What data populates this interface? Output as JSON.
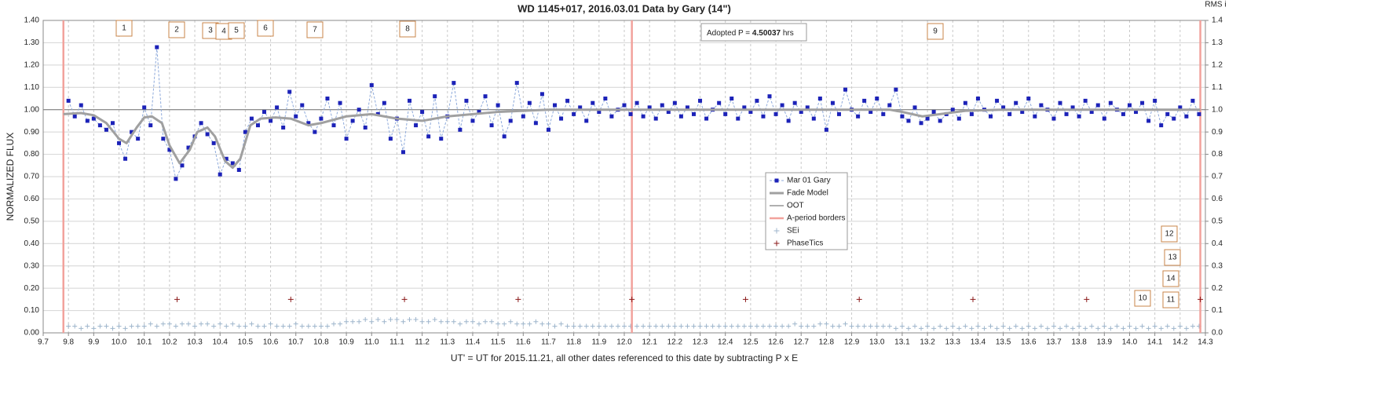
{
  "chart_data": {
    "type": "scatter",
    "title": "WD 1145+017, 2016.03.01 Data by Gary (14\")",
    "x_label": "UT' = UT for 2015.11.21, all other dates referenced to this date by subtracting P x E",
    "y_label": "NORMALIZED FLUX",
    "y2_label": "RMS i",
    "xlim": [
      9.7,
      14.3
    ],
    "xticks": [
      9.7,
      9.8,
      9.9,
      {
        "value": 10.0,
        "label": "10.0"
      },
      10.1,
      10.2,
      10.3,
      10.4,
      10.5,
      10.6,
      10.7,
      10.8,
      10.9,
      {
        "value": 11.0,
        "label": "11.0"
      },
      11.1,
      11.2,
      11.3,
      11.4,
      11.5,
      11.6,
      11.7,
      11.8,
      11.9,
      {
        "value": 12.0,
        "label": "12.0"
      },
      12.1,
      12.2,
      12.3,
      12.4,
      12.5,
      12.6,
      12.7,
      12.8,
      12.9,
      {
        "value": 13.0,
        "label": "13.0"
      },
      13.1,
      13.2,
      13.3,
      13.4,
      13.5,
      13.6,
      13.7,
      13.8,
      13.9,
      {
        "value": 14.0,
        "label": "14.0"
      },
      14.1,
      14.2,
      14.3
    ],
    "ylim": [
      0,
      1.4
    ],
    "yticks": [
      {
        "value": 0,
        "label": "0.00"
      },
      {
        "value": 0.1,
        "label": "0.10"
      },
      {
        "value": 0.2,
        "label": "0.20"
      },
      {
        "value": 0.3,
        "label": "0.30"
      },
      {
        "value": 0.4,
        "label": "0.40"
      },
      {
        "value": 0.5,
        "label": "0.50"
      },
      {
        "value": 0.6,
        "label": "0.60"
      },
      {
        "value": 0.7,
        "label": "0.70"
      },
      {
        "value": 0.8,
        "label": "0.80"
      },
      {
        "value": 0.9,
        "label": "0.90"
      },
      {
        "value": 1.0,
        "label": "1.00"
      },
      {
        "value": 1.1,
        "label": "1.10"
      },
      {
        "value": 1.2,
        "label": "1.20"
      },
      {
        "value": 1.3,
        "label": "1.30"
      },
      {
        "value": 1.4,
        "label": "1.40"
      }
    ],
    "y2lim": [
      0,
      1.4
    ],
    "y2ticks": [
      {
        "value": 0,
        "label": "0.0"
      },
      0.1,
      0.2,
      0.3,
      0.4,
      0.5,
      0.6,
      0.7,
      0.8,
      0.9,
      {
        "value": 1.0,
        "label": "1.0"
      },
      1.1,
      1.2,
      1.3,
      1.4
    ],
    "grid": true,
    "annotations": [
      "1",
      "2",
      "3",
      "4",
      "5",
      "6",
      "7",
      "8",
      "9",
      "10",
      "11",
      "12",
      "13",
      "14"
    ],
    "period_note": {
      "prefix": "Adopted P = ",
      "value": 4.50037,
      "suffix": " hrs"
    },
    "x": [
      9.8,
      9.825,
      9.85,
      9.875,
      9.9,
      9.925,
      9.95,
      9.975,
      10.0,
      10.025,
      10.05,
      10.075,
      10.1,
      10.125,
      10.15,
      10.175,
      10.2,
      10.225,
      10.25,
      10.275,
      10.3,
      10.325,
      10.35,
      10.375,
      10.4,
      10.425,
      10.45,
      10.475,
      10.5,
      10.525,
      10.55,
      10.575,
      10.6,
      10.625,
      10.65,
      10.675,
      10.7,
      10.725,
      10.75,
      10.775,
      10.8,
      10.825,
      10.85,
      10.875,
      10.9,
      10.925,
      10.95,
      10.975,
      11.0,
      11.025,
      11.05,
      11.075,
      11.1,
      11.125,
      11.15,
      11.175,
      11.2,
      11.225,
      11.25,
      11.275,
      11.3,
      11.325,
      11.35,
      11.375,
      11.4,
      11.425,
      11.45,
      11.475,
      11.5,
      11.525,
      11.55,
      11.575,
      11.6,
      11.625,
      11.65,
      11.675,
      11.7,
      11.725,
      11.75,
      11.775,
      11.8,
      11.825,
      11.85,
      11.875,
      11.9,
      11.925,
      11.95,
      11.975,
      12.0,
      12.025,
      12.05,
      12.075,
      12.1,
      12.125,
      12.15,
      12.175,
      12.2,
      12.225,
      12.25,
      12.275,
      12.3,
      12.325,
      12.35,
      12.375,
      12.4,
      12.425,
      12.45,
      12.475,
      12.5,
      12.525,
      12.55,
      12.575,
      12.6,
      12.625,
      12.65,
      12.675,
      12.7,
      12.725,
      12.75,
      12.775,
      12.8,
      12.825,
      12.85,
      12.875,
      12.9,
      12.925,
      12.95,
      12.975,
      13.0,
      13.025,
      13.05,
      13.075,
      13.1,
      13.125,
      13.15,
      13.175,
      13.2,
      13.225,
      13.25,
      13.275,
      13.3,
      13.325,
      13.35,
      13.375,
      13.4,
      13.425,
      13.45,
      13.475,
      13.5,
      13.525,
      13.55,
      13.575,
      13.6,
      13.625,
      13.65,
      13.675,
      13.7,
      13.725,
      13.75,
      13.775,
      13.8,
      13.825,
      13.85,
      13.875,
      13.9,
      13.925,
      13.95,
      13.975,
      14.0,
      14.025,
      14.05,
      14.075,
      14.1,
      14.125,
      14.15,
      14.175,
      14.2,
      14.225,
      14.25,
      14.275
    ],
    "series": [
      {
        "name": "Mar 01 Gary",
        "color": "#1c22b8",
        "line_color": "#8eaadb",
        "values": [
          1.04,
          0.97,
          1.02,
          0.95,
          0.96,
          0.93,
          0.91,
          0.94,
          0.85,
          0.78,
          0.9,
          0.87,
          1.01,
          0.93,
          1.28,
          0.87,
          0.82,
          0.69,
          0.75,
          0.83,
          0.88,
          0.94,
          0.89,
          0.85,
          0.71,
          0.78,
          0.76,
          0.73,
          0.9,
          0.96,
          0.93,
          0.99,
          0.95,
          1.01,
          0.92,
          1.08,
          0.97,
          1.02,
          0.94,
          0.9,
          0.96,
          1.05,
          0.93,
          1.03,
          0.87,
          0.95,
          1.0,
          0.92,
          1.11,
          0.98,
          1.03,
          0.87,
          0.96,
          0.81,
          1.04,
          0.93,
          0.99,
          0.88,
          1.06,
          0.87,
          0.97,
          1.12,
          0.91,
          1.04,
          0.95,
          0.99,
          1.06,
          0.93,
          1.02,
          0.88,
          0.95,
          1.12,
          0.97,
          1.03,
          0.94,
          1.07,
          0.91,
          1.02,
          0.96,
          1.04,
          0.98,
          1.01,
          0.95,
          1.03,
          0.99,
          1.05,
          0.97,
          1.0,
          1.02,
          0.98,
          1.03,
          0.97,
          1.01,
          0.96,
          1.02,
          0.99,
          1.03,
          0.97,
          1.01,
          0.98,
          1.04,
          0.96,
          1.0,
          1.03,
          0.98,
          1.05,
          0.96,
          1.01,
          0.99,
          1.04,
          0.97,
          1.06,
          0.98,
          1.02,
          0.95,
          1.03,
          0.99,
          1.01,
          0.96,
          1.05,
          0.91,
          1.03,
          0.98,
          1.09,
          1.0,
          0.97,
          1.04,
          0.99,
          1.05,
          0.98,
          1.02,
          1.09,
          0.97,
          0.95,
          1.01,
          0.94,
          0.96,
          0.99,
          0.95,
          0.98,
          1.0,
          0.96,
          1.03,
          0.98,
          1.05,
          1.0,
          0.97,
          1.04,
          1.01,
          0.98,
          1.03,
          0.99,
          1.05,
          0.97,
          1.02,
          1.0,
          0.96,
          1.03,
          0.98,
          1.01,
          0.97,
          1.04,
          0.99,
          1.02,
          0.96,
          1.03,
          1.0,
          0.98,
          1.02,
          0.99,
          1.03,
          0.95,
          1.04,
          0.93,
          0.98,
          0.96,
          1.01,
          0.97,
          1.04,
          0.98
        ]
      },
      {
        "name": "Fade Model",
        "color": "#a0a0a0",
        "x": [
          9.78,
          9.85,
          9.9,
          9.95,
          10.0,
          10.03,
          10.07,
          10.1,
          10.13,
          10.17,
          10.2,
          10.24,
          10.28,
          10.31,
          10.35,
          10.38,
          10.42,
          10.45,
          10.48,
          10.52,
          10.56,
          10.62,
          10.68,
          10.75,
          10.8,
          10.9,
          11.0,
          11.1,
          11.2,
          11.3,
          11.5,
          11.7,
          12.0,
          13.05,
          13.1,
          13.18,
          13.25,
          13.35,
          13.5,
          14.28
        ],
        "values": [
          0.98,
          0.985,
          0.975,
          0.94,
          0.87,
          0.85,
          0.92,
          0.965,
          0.97,
          0.94,
          0.84,
          0.76,
          0.82,
          0.9,
          0.92,
          0.88,
          0.77,
          0.74,
          0.78,
          0.93,
          0.96,
          0.965,
          0.96,
          0.93,
          0.94,
          0.97,
          0.98,
          0.96,
          0.95,
          0.97,
          0.99,
          1.0,
          1.0,
          1.0,
          0.99,
          0.97,
          0.98,
          0.995,
          1.0,
          1.0
        ]
      },
      {
        "name": "OOT",
        "color": "#808080",
        "x": [
          9.7,
          14.3
        ],
        "values": [
          1.0,
          1.0
        ]
      },
      {
        "name": "A-period borders",
        "color": "#f2a29c",
        "x": [
          9.78,
          12.03,
          14.28
        ]
      },
      {
        "name": "SEi",
        "color": "#9fb6cc",
        "values": [
          0.03,
          0.03,
          0.02,
          0.03,
          0.02,
          0.03,
          0.03,
          0.02,
          0.03,
          0.02,
          0.03,
          0.03,
          0.03,
          0.04,
          0.03,
          0.04,
          0.04,
          0.03,
          0.04,
          0.04,
          0.03,
          0.04,
          0.04,
          0.03,
          0.04,
          0.03,
          0.04,
          0.03,
          0.03,
          0.04,
          0.03,
          0.03,
          0.04,
          0.03,
          0.03,
          0.03,
          0.04,
          0.03,
          0.03,
          0.03,
          0.03,
          0.03,
          0.04,
          0.04,
          0.05,
          0.05,
          0.05,
          0.06,
          0.05,
          0.06,
          0.05,
          0.06,
          0.06,
          0.05,
          0.06,
          0.06,
          0.05,
          0.05,
          0.06,
          0.05,
          0.05,
          0.05,
          0.04,
          0.05,
          0.05,
          0.04,
          0.05,
          0.05,
          0.04,
          0.04,
          0.05,
          0.04,
          0.04,
          0.04,
          0.05,
          0.04,
          0.04,
          0.03,
          0.04,
          0.03,
          0.03,
          0.03,
          0.03,
          0.03,
          0.03,
          0.03,
          0.03,
          0.03,
          0.03,
          0.03,
          0.03,
          0.03,
          0.03,
          0.03,
          0.03,
          0.03,
          0.03,
          0.03,
          0.03,
          0.03,
          0.03,
          0.03,
          0.03,
          0.03,
          0.03,
          0.03,
          0.03,
          0.03,
          0.03,
          0.03,
          0.03,
          0.03,
          0.03,
          0.03,
          0.03,
          0.04,
          0.03,
          0.03,
          0.03,
          0.04,
          0.04,
          0.03,
          0.03,
          0.04,
          0.03,
          0.03,
          0.03,
          0.03,
          0.03,
          0.03,
          0.03,
          0.02,
          0.03,
          0.02,
          0.03,
          0.02,
          0.03,
          0.02,
          0.03,
          0.02,
          0.03,
          0.02,
          0.03,
          0.02,
          0.03,
          0.02,
          0.03,
          0.02,
          0.03,
          0.02,
          0.03,
          0.02,
          0.03,
          0.02,
          0.03,
          0.02,
          0.03,
          0.02,
          0.03,
          0.02,
          0.03,
          0.02,
          0.03,
          0.02,
          0.03,
          0.02,
          0.03,
          0.02,
          0.03,
          0.02,
          0.03,
          0.02,
          0.03,
          0.02,
          0.03,
          0.02,
          0.03,
          0.02,
          0.03,
          0.03
        ]
      },
      {
        "name": "PhaseTics",
        "color": "#8b1a1a",
        "x": [
          10.23,
          10.68,
          11.13,
          11.58,
          12.03,
          12.48,
          12.93,
          13.38,
          13.83,
          14.28
        ],
        "values": [
          0.15,
          0.15,
          0.15,
          0.15,
          0.15,
          0.15,
          0.15,
          0.15,
          0.15,
          0.15
        ]
      }
    ]
  }
}
